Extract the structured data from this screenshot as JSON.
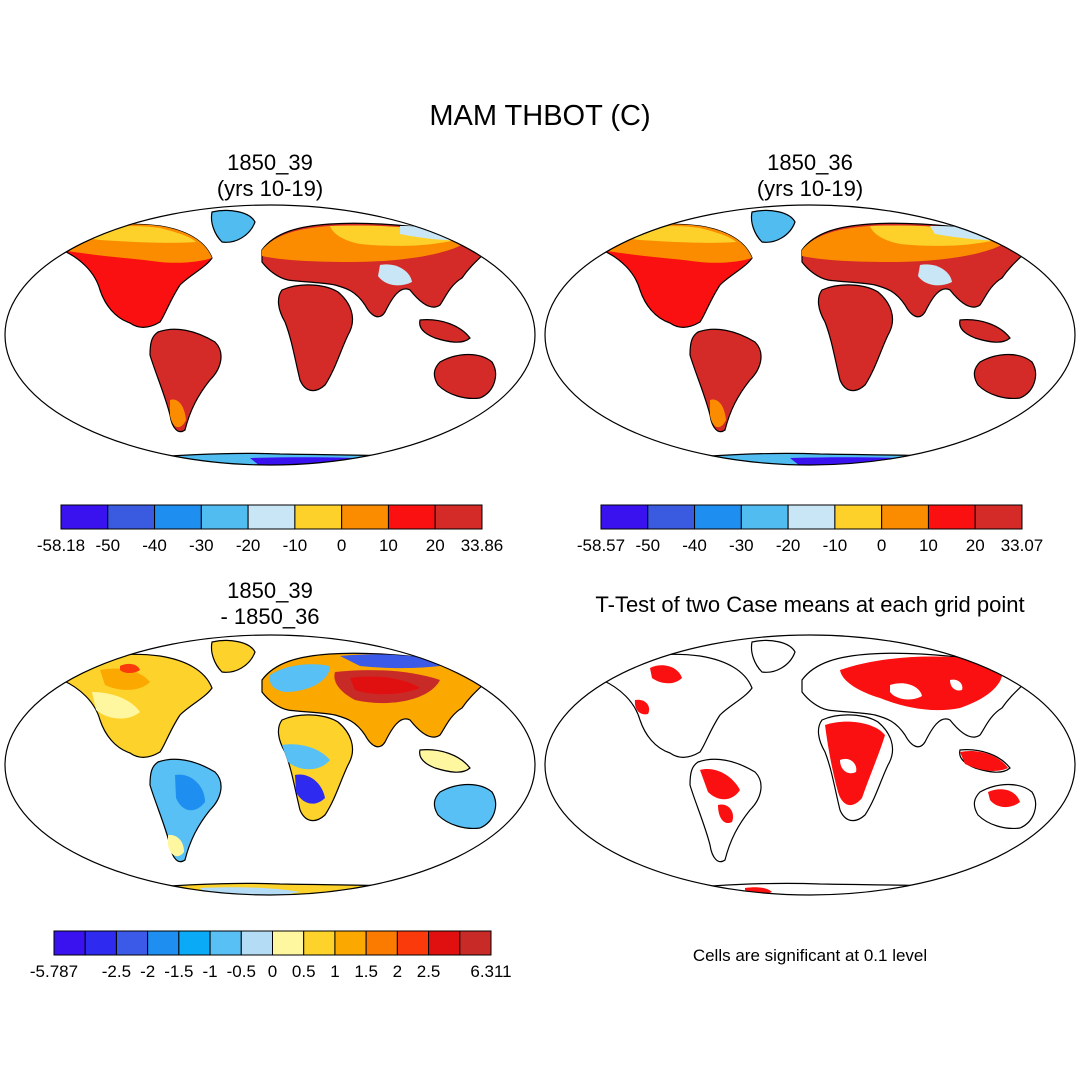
{
  "title": "MAM THBOT (C)",
  "panels": [
    {
      "id": "p1",
      "title_line1": "1850_39",
      "title_line2": "(yrs 10-19)"
    },
    {
      "id": "p2",
      "title_line1": "1850_36",
      "title_line2": "(yrs 10-19)"
    },
    {
      "id": "p3",
      "title_line1": "1850_39",
      "title_line2": "- 1850_36"
    },
    {
      "id": "p4",
      "title_line1": "T-Test of two Case means at each grid point",
      "title_line2": ""
    }
  ],
  "colorbars": {
    "cb1": {
      "colors": [
        "#3a12f0",
        "#3a5ae0",
        "#1e8ef0",
        "#50bcf0",
        "#c8e6f6",
        "#fdd02a",
        "#fb8c00",
        "#fa1010",
        "#d42a28"
      ],
      "labels": [
        "-58.18",
        "-50",
        "-40",
        "-30",
        "-20",
        "-10",
        "0",
        "10",
        "20",
        "33.86"
      ]
    },
    "cb2": {
      "colors": [
        "#3a12f0",
        "#3a5ae0",
        "#1e8ef0",
        "#50bcf0",
        "#c8e6f6",
        "#fdd02a",
        "#fb8c00",
        "#fa1010",
        "#d42a28"
      ],
      "labels": [
        "-58.57",
        "-50",
        "-40",
        "-30",
        "-20",
        "-10",
        "0",
        "10",
        "20",
        "33.07"
      ]
    },
    "cb3": {
      "colors": [
        "#3a12f0",
        "#2e2af0",
        "#3c5ae8",
        "#1e8ef0",
        "#0aaaf6",
        "#58c0f4",
        "#b4dcf4",
        "#fff6a0",
        "#fdd22a",
        "#fba800",
        "#fb7a00",
        "#fa3a0a",
        "#e01010",
        "#c82a28"
      ],
      "labels": [
        "-5.787",
        "",
        "-2.5",
        "-2",
        "-1.5",
        "-1",
        "-0.5",
        "0",
        "0.5",
        "1",
        "1.5",
        "2",
        "2.5",
        "",
        "6.311"
      ]
    }
  },
  "note": "Cells are significant at 0.1 level"
}
